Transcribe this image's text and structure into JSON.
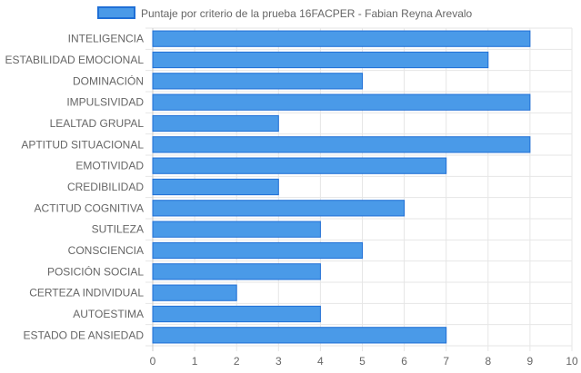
{
  "chart_data": {
    "type": "bar",
    "orientation": "horizontal",
    "categories": [
      "INTELIGENCIA",
      "ESTABILIDAD EMOCIONAL",
      "DOMINACIÓN",
      "IMPULSIVIDAD",
      "LEALTAD GRUPAL",
      "APTITUD SITUACIONAL",
      "EMOTIVIDAD",
      "CREDIBILIDAD",
      "ACTITUD COGNITIVA",
      "SUTILEZA",
      "CONSCIENCIA",
      "POSICIÓN SOCIAL",
      "CERTEZA INDIVIDUAL",
      "AUTOESTIMA",
      "ESTADO DE ANSIEDAD"
    ],
    "series": [
      {
        "name": "Puntaje por criterio de la prueba 16FACPER - Fabian Reyna Arevalo",
        "values": [
          9,
          8,
          5,
          9,
          3,
          9,
          7,
          3,
          6,
          4,
          5,
          4,
          2,
          4,
          7
        ],
        "color": "#4a9ae8",
        "border_color": "#1f6fd6"
      }
    ],
    "xlim": [
      0,
      10
    ],
    "x_ticks": [
      "0",
      "1",
      "2",
      "3",
      "4",
      "5",
      "6",
      "7",
      "8",
      "9",
      "10"
    ],
    "grid": true,
    "legend_position": "top-center",
    "colors": {
      "grid": "#e6e6e6",
      "axis": "#cccccc",
      "text": "#666666"
    }
  }
}
